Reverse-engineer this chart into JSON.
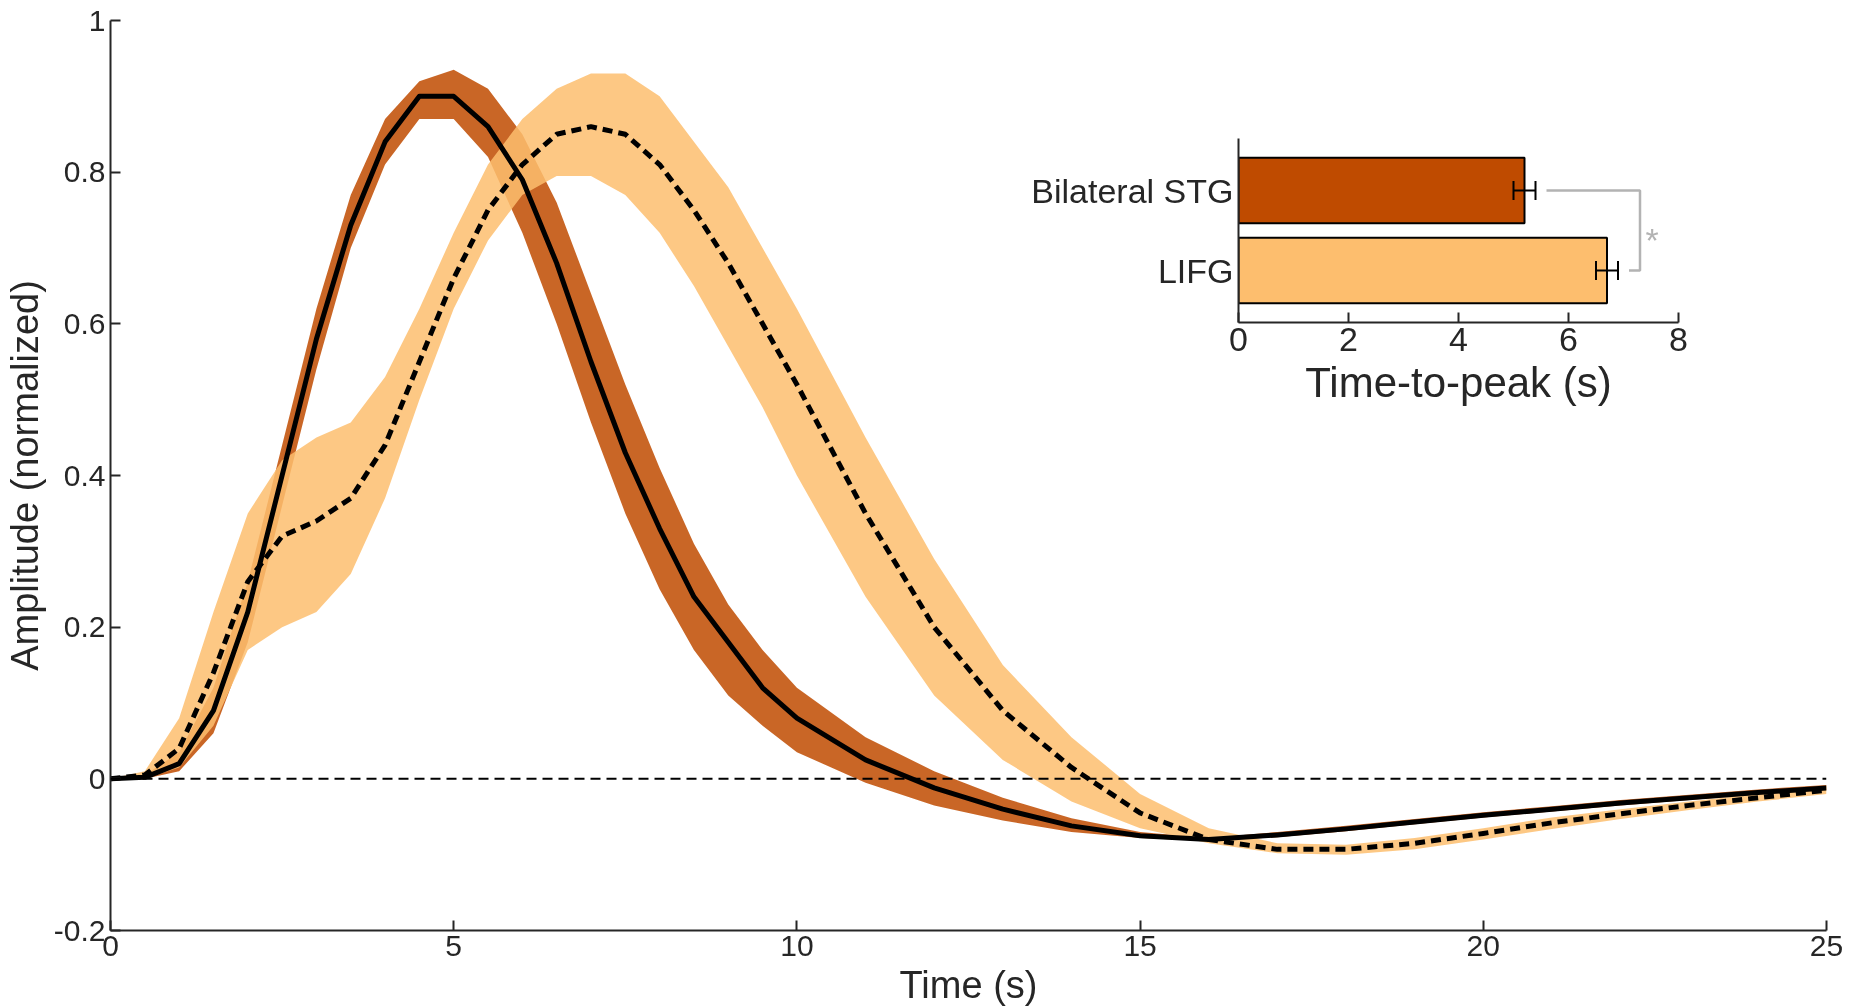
{
  "chart_data": [
    {
      "type": "line",
      "xlabel": "Time (s)",
      "ylabel": "Amplitude (normalized)",
      "xlim": [
        0,
        25
      ],
      "ylim": [
        -0.2,
        1
      ],
      "xticks": [
        0,
        5,
        10,
        15,
        20,
        25
      ],
      "yticks": [
        -0.2,
        0,
        0.2,
        0.4,
        0.6,
        0.8,
        1
      ],
      "grid": false,
      "x": [
        0,
        0.5,
        1,
        1.5,
        2,
        2.5,
        3,
        3.5,
        4,
        4.5,
        5,
        5.5,
        6,
        6.5,
        7,
        7.5,
        8,
        8.5,
        9,
        9.5,
        10,
        11,
        12,
        13,
        14,
        15,
        16,
        17,
        18,
        19,
        20,
        21,
        22,
        23,
        24,
        25
      ],
      "ref_lines": [
        {
          "axis": "y",
          "value": 0,
          "color": "#000000",
          "line_style": "dashed"
        }
      ],
      "series": [
        {
          "color": "#000000",
          "colors": [
            "#bf4b00",
            "#bf4b00",
            "#bf4b00",
            "#bf4b00",
            "#bf4b00",
            "#bf4b00",
            "#bf4b00",
            "#bf4b00",
            "#bf4b00",
            "#bf4b00",
            "#bf4b00",
            "#bf4b00",
            "#bf4b00",
            "#bf4b00",
            "#bf4b00",
            "#bf4b00",
            "#bf4b00",
            "#bf4b00",
            "#bf4b00",
            "#bf4b00",
            "#bf4b00",
            "#bf4b00",
            "#bf4b00",
            "#bf4b00",
            "#bf4b00",
            "#bf4b00",
            "#bf4b00",
            "#bf4b00",
            "#bf4b00",
            "#bf4b00",
            "#bf4b00",
            "#bf4b00",
            "#bf4b00",
            "#bf4b00",
            "#bf4b00",
            "#bf4b00"
          ],
          "line_style": "solid",
          "values": [
            0,
            0.002,
            0.02,
            0.09,
            0.22,
            0.4,
            0.58,
            0.73,
            0.84,
            0.9,
            0.9,
            0.86,
            0.79,
            0.68,
            0.55,
            0.43,
            0.33,
            0.24,
            0.18,
            0.12,
            0.08,
            0.025,
            -0.012,
            -0.04,
            -0.062,
            -0.075,
            -0.08,
            -0.074,
            -0.066,
            -0.057,
            -0.048,
            -0.04,
            -0.032,
            -0.025,
            -0.018,
            -0.012
          ],
          "lower": [
            0,
            0,
            0.01,
            0.06,
            0.18,
            0.36,
            0.54,
            0.7,
            0.81,
            0.87,
            0.87,
            0.82,
            0.72,
            0.6,
            0.47,
            0.35,
            0.25,
            0.17,
            0.11,
            0.07,
            0.035,
            -0.005,
            -0.035,
            -0.055,
            -0.07,
            -0.078,
            -0.082,
            -0.077,
            -0.069,
            -0.06,
            -0.051,
            -0.043,
            -0.035,
            -0.028,
            -0.021,
            -0.015
          ],
          "upper": [
            0,
            0.005,
            0.035,
            0.12,
            0.26,
            0.44,
            0.62,
            0.77,
            0.87,
            0.92,
            0.935,
            0.91,
            0.85,
            0.76,
            0.64,
            0.52,
            0.41,
            0.31,
            0.23,
            0.17,
            0.12,
            0.055,
            0.01,
            -0.025,
            -0.052,
            -0.07,
            -0.078,
            -0.07,
            -0.062,
            -0.053,
            -0.044,
            -0.036,
            -0.028,
            -0.021,
            -0.014,
            -0.008
          ]
        },
        {
          "color": "#000000",
          "colors": [
            "#fdbe6e",
            "#fdbe6e",
            "#fdbe6e",
            "#fdbe6e",
            "#fdbe6e",
            "#fdbe6e",
            "#fdbe6e",
            "#fdbe6e",
            "#fdbe6e",
            "#fdbe6e",
            "#fdbe6e",
            "#fdbe6e",
            "#fdbe6e",
            "#fdbe6e",
            "#fdbe6e",
            "#fdbe6e",
            "#fdbe6e",
            "#fdbe6e",
            "#fdbe6e",
            "#fdbe6e",
            "#fdbe6e",
            "#fdbe6e",
            "#fdbe6e",
            "#fdbe6e",
            "#fdbe6e",
            "#fdbe6e",
            "#fdbe6e",
            "#fdbe6e",
            "#fdbe6e",
            "#fdbe6e",
            "#fdbe6e",
            "#fdbe6e",
            "#fdbe6e",
            "#fdbe6e",
            "#fdbe6e",
            "#fdbe6e"
          ],
          "line_style": "dashed",
          "values": [
            0,
            0.005,
            0.04,
            0.14,
            0.26,
            0.32,
            0.34,
            0.37,
            0.44,
            0.55,
            0.66,
            0.75,
            0.81,
            0.85,
            0.86,
            0.85,
            0.81,
            0.75,
            0.68,
            0.6,
            0.52,
            0.35,
            0.2,
            0.09,
            0.015,
            -0.045,
            -0.08,
            -0.093,
            -0.093,
            -0.085,
            -0.072,
            -0.058,
            -0.046,
            -0.035,
            -0.025,
            -0.015
          ],
          "lower": [
            0,
            0,
            0.015,
            0.07,
            0.17,
            0.2,
            0.22,
            0.27,
            0.37,
            0.5,
            0.62,
            0.71,
            0.77,
            0.795,
            0.795,
            0.77,
            0.72,
            0.65,
            0.57,
            0.49,
            0.4,
            0.24,
            0.11,
            0.025,
            -0.03,
            -0.065,
            -0.085,
            -0.098,
            -0.1,
            -0.093,
            -0.08,
            -0.066,
            -0.053,
            -0.041,
            -0.03,
            -0.02
          ],
          "upper": [
            0,
            0.01,
            0.08,
            0.22,
            0.35,
            0.42,
            0.45,
            0.47,
            0.53,
            0.62,
            0.72,
            0.81,
            0.87,
            0.91,
            0.93,
            0.93,
            0.9,
            0.84,
            0.78,
            0.7,
            0.62,
            0.45,
            0.29,
            0.15,
            0.055,
            -0.02,
            -0.065,
            -0.085,
            -0.087,
            -0.078,
            -0.065,
            -0.051,
            -0.04,
            -0.03,
            -0.02,
            -0.01
          ]
        }
      ]
    },
    {
      "type": "bar",
      "orientation": "horizontal",
      "categories": [
        "Bilateral STG",
        "LIFG"
      ],
      "values": [
        5.2,
        6.7
      ],
      "errors": [
        0.2,
        0.2
      ],
      "colors": [
        "#bf4b00",
        "#fdbe6e"
      ],
      "xlabel": "Time-to-peak (s)",
      "xlim": [
        0,
        8
      ],
      "xticks": [
        0,
        2,
        4,
        6,
        8
      ],
      "grid": false,
      "annotations": [
        "*"
      ]
    }
  ]
}
